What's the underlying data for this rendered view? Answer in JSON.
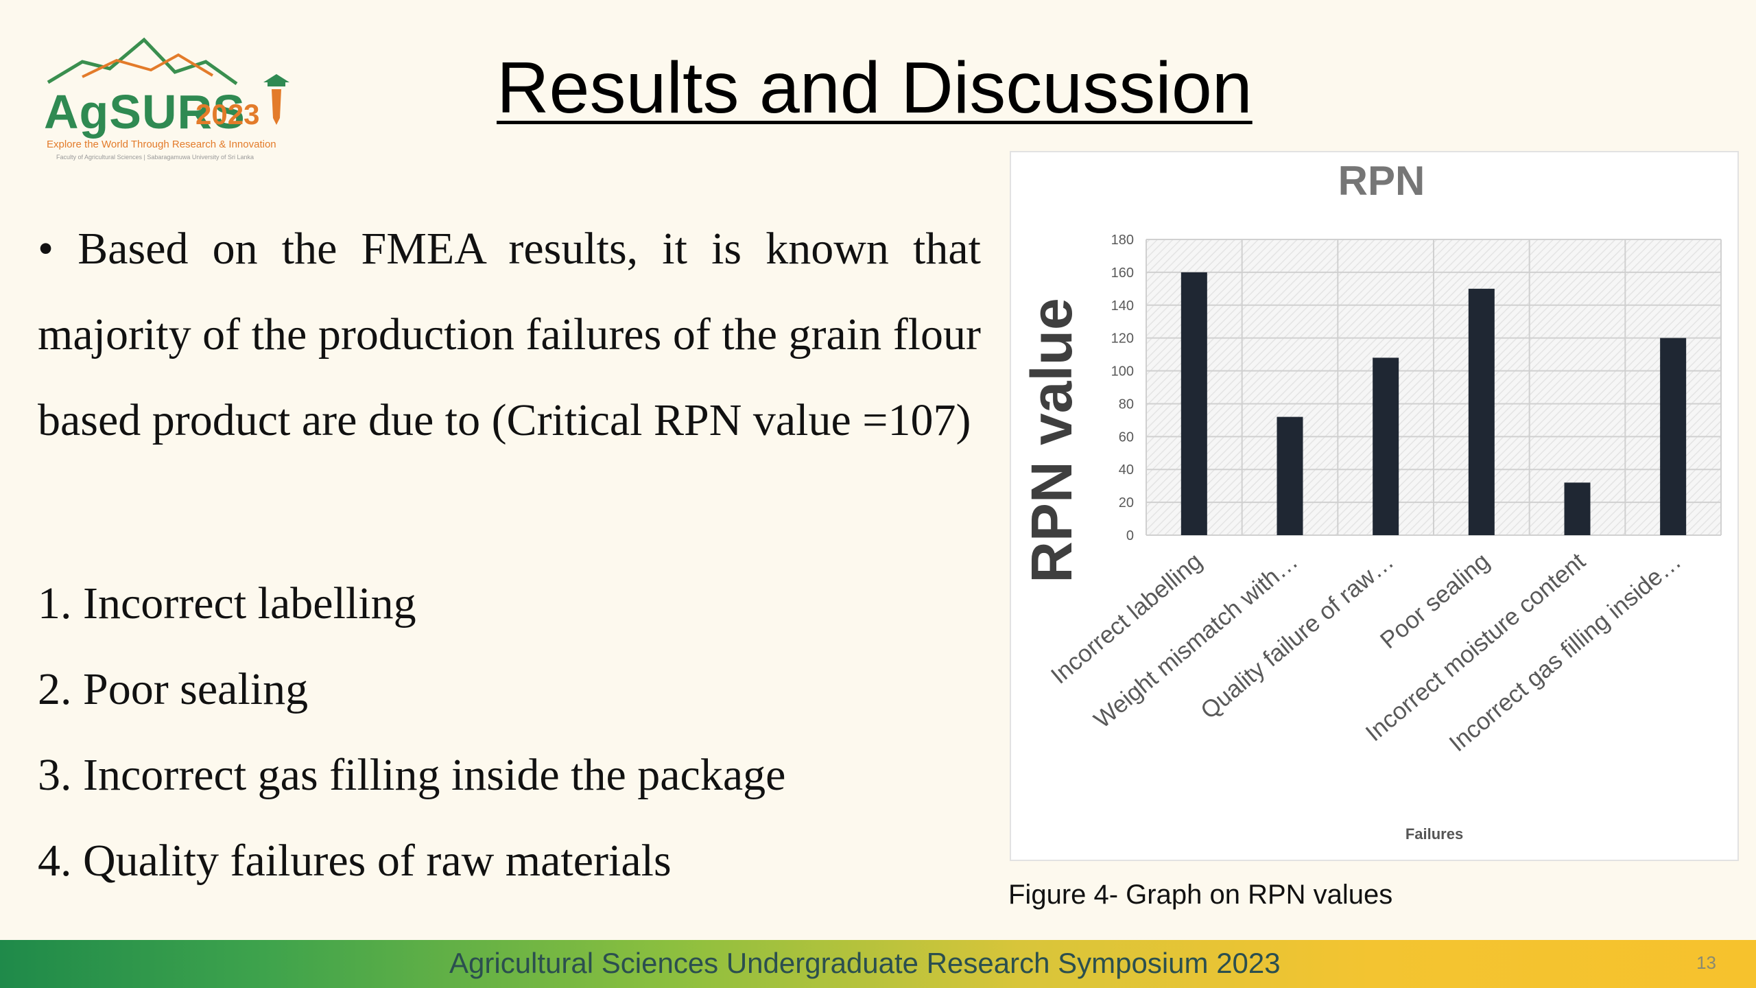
{
  "logo": {
    "word": "AgSURS",
    "year": "2023",
    "tagline": "Explore the World Through Research & Innovation",
    "subline": "Faculty of Agricultural Sciences | Sabaragamuwa University of Sri Lanka"
  },
  "title": "Results and Discussion",
  "intro": "• Based on the FMEA results, it is known that majority of the production failures of the grain flour based product are due to (Critical RPN value =107)",
  "points": [
    "1. Incorrect labelling",
    "2. Poor sealing",
    "3. Incorrect gas filling inside the package",
    "4. Quality failures of raw materials"
  ],
  "chart_data": {
    "type": "bar",
    "title": "RPN",
    "xlabel": "Failures",
    "ylabel": "RPN value",
    "categories": [
      "Incorrect labelling",
      "Weight mismatch with…",
      "Quality failure of raw…",
      "Poor sealing",
      "Incorrect moisture content",
      "Incorrect gas filling inside…"
    ],
    "values": [
      160,
      72,
      108,
      150,
      32,
      120
    ],
    "ylim": [
      0,
      180
    ],
    "yticks": [
      0,
      20,
      40,
      60,
      80,
      100,
      120,
      140,
      160,
      180
    ],
    "grid": true,
    "colors": {
      "bar": "#1f2733",
      "title": "#767676",
      "ylabel": "#3f3f3f"
    }
  },
  "caption": "Figure 4- Graph on RPN values",
  "footer": {
    "text": "Agricultural Sciences Undergraduate Research Symposium 2023",
    "page": "13"
  }
}
